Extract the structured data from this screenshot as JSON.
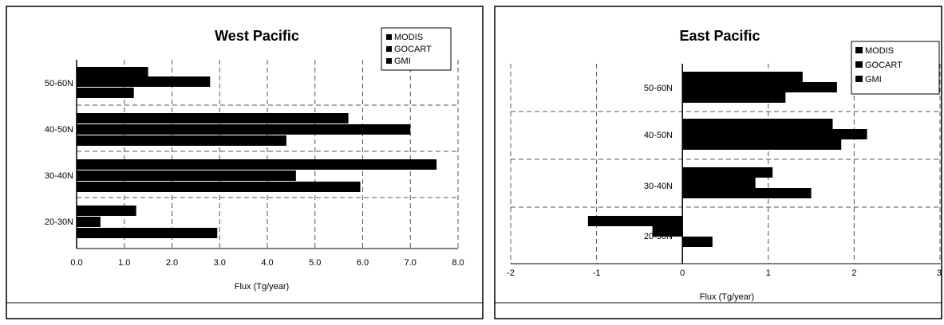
{
  "chart_data": [
    {
      "type": "bar",
      "orientation": "horizontal",
      "title": "West Pacific",
      "xlabel": "Flux (Tg/year)",
      "ylabel": "",
      "categories": [
        "50-60N",
        "40-50N",
        "30-40N",
        "20-30N"
      ],
      "series": [
        {
          "name": "MODIS",
          "values": [
            1.5,
            5.7,
            7.55,
            1.25
          ]
        },
        {
          "name": "GOCART",
          "values": [
            2.8,
            7.0,
            4.6,
            0.5
          ]
        },
        {
          "name": "GMI",
          "values": [
            1.2,
            4.4,
            5.95,
            2.95
          ]
        }
      ],
      "xlim": [
        0,
        8
      ],
      "xticks": [
        "0.0",
        "1.0",
        "2.0",
        "3.0",
        "4.0",
        "5.0",
        "6.0",
        "7.0",
        "8.0"
      ],
      "grid": true,
      "legend_position": "top-right"
    },
    {
      "type": "bar",
      "orientation": "horizontal",
      "title": "East Pacific",
      "xlabel": "Flux (Tg/year)",
      "ylabel": "",
      "categories": [
        "50-60N",
        "40-50N",
        "30-40N",
        "20-30N"
      ],
      "series": [
        {
          "name": "MODIS",
          "values": [
            1.4,
            1.75,
            1.05,
            -1.1
          ]
        },
        {
          "name": "GOCART",
          "values": [
            1.8,
            2.15,
            0.85,
            -0.35
          ]
        },
        {
          "name": "GMI",
          "values": [
            1.2,
            1.85,
            1.5,
            0.35
          ]
        }
      ],
      "xlim": [
        -2,
        3
      ],
      "xticks": [
        "-2",
        "-1",
        "0",
        "1",
        "2",
        "3"
      ],
      "grid": true,
      "legend_position": "top-right"
    }
  ],
  "colors": {
    "bar": "#000000",
    "grid": "#555555",
    "frame": "#000000",
    "background": "#ffffff"
  }
}
